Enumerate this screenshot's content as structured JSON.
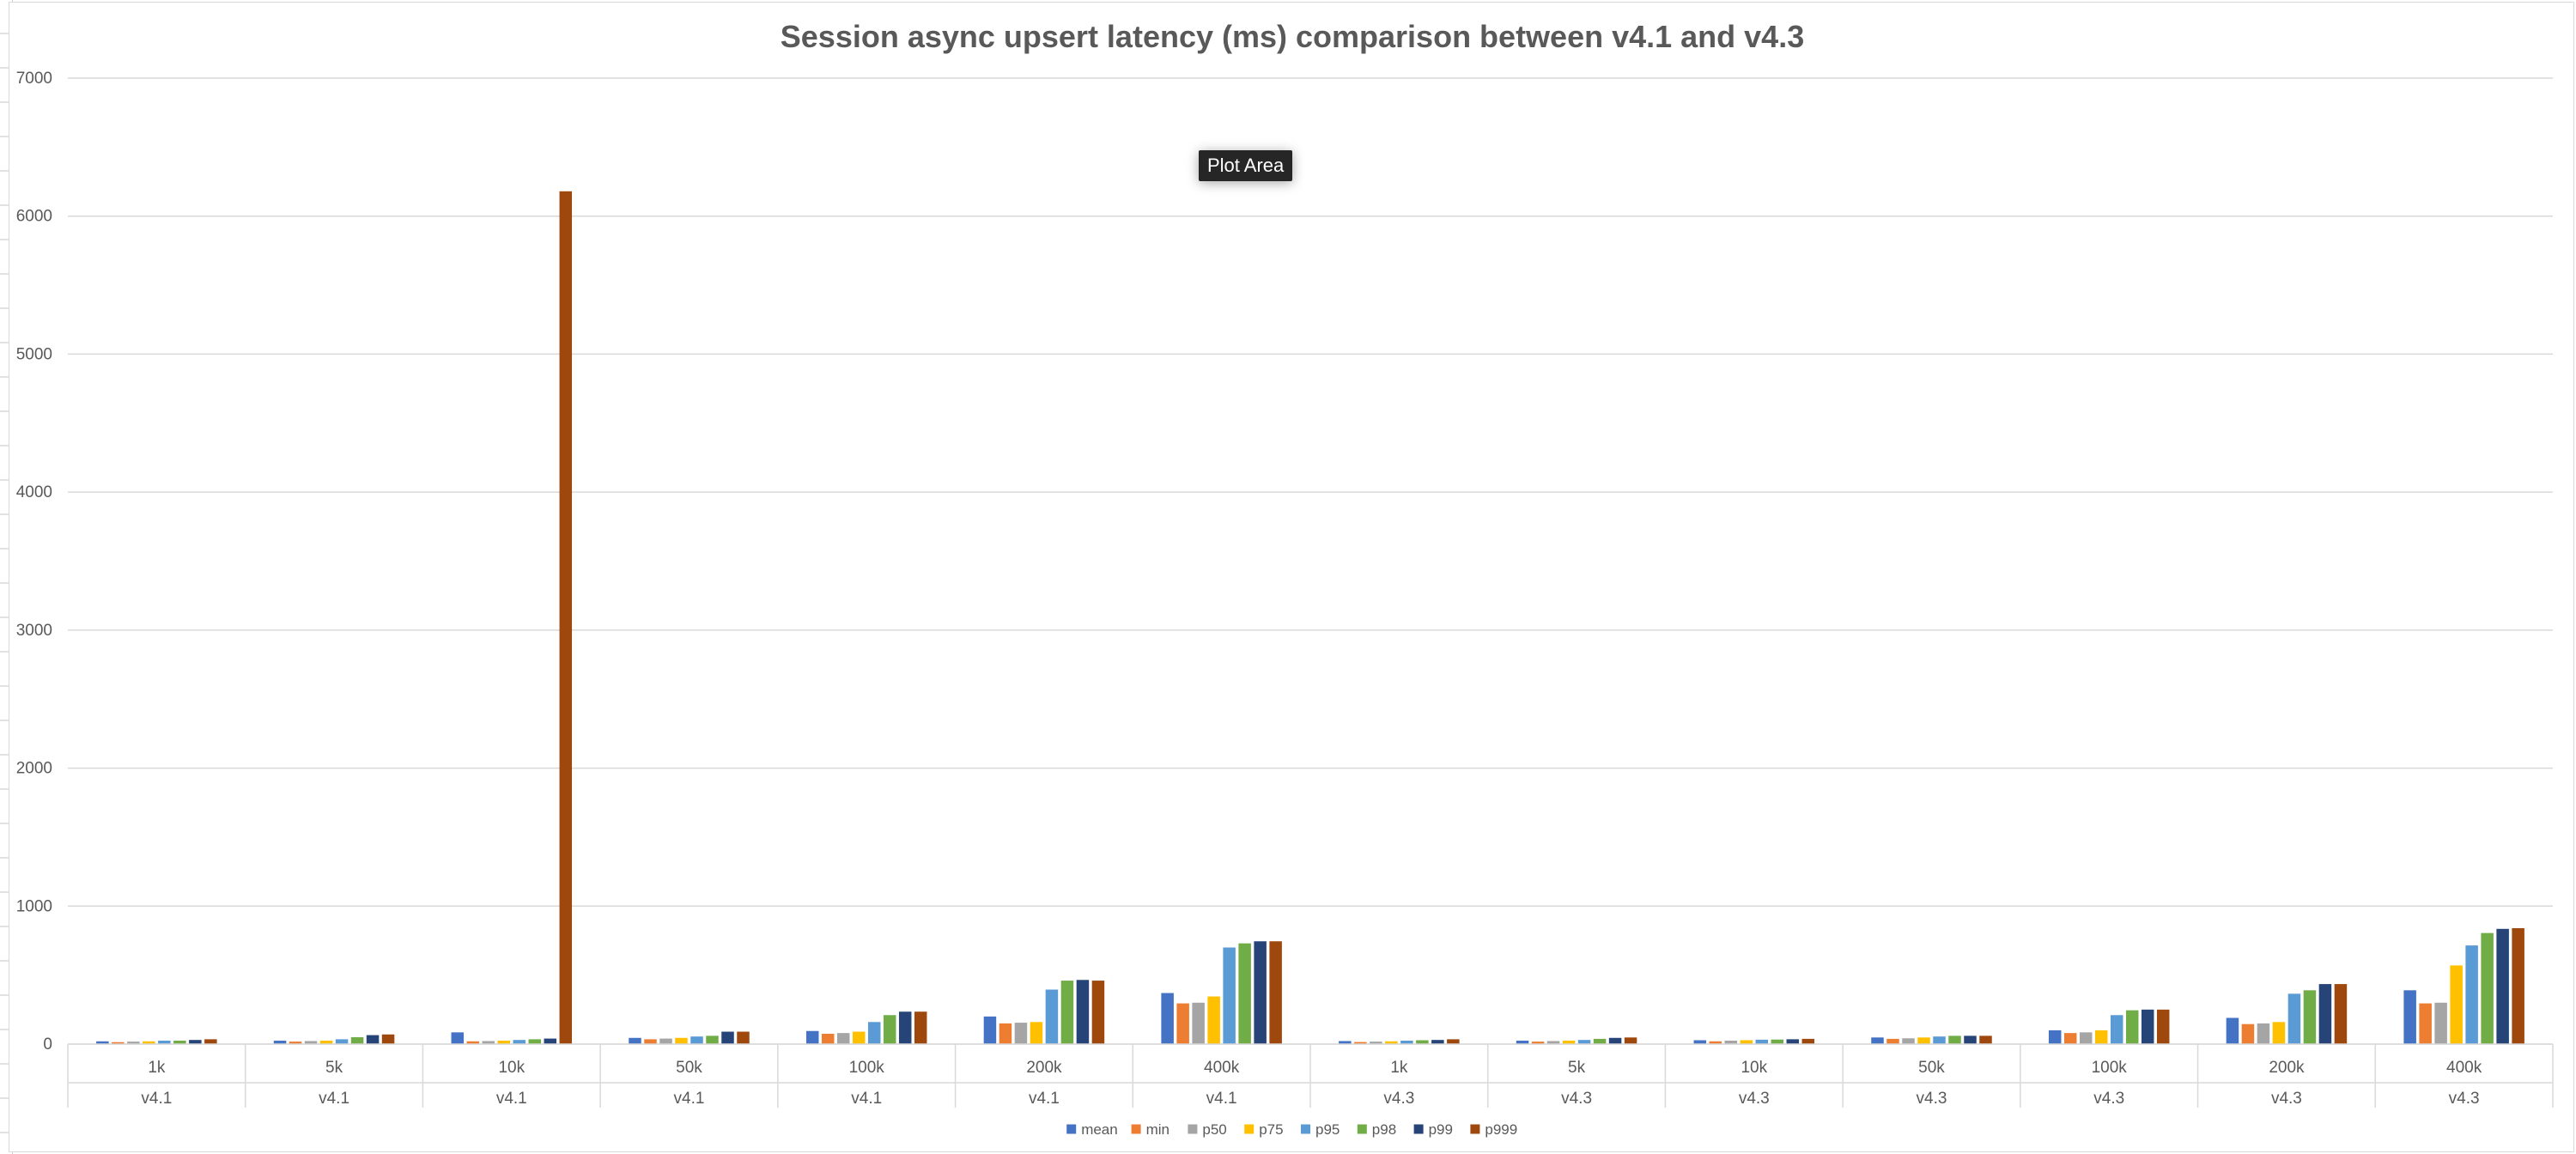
{
  "chart_data": {
    "type": "bar",
    "title": "Session async upsert latency (ms) comparison between v4.1 and v4.3",
    "xlabel": "",
    "ylabel": "",
    "ylim": [
      0,
      7000
    ],
    "yticks": [
      0,
      1000,
      2000,
      3000,
      4000,
      5000,
      6000,
      7000
    ],
    "grid": true,
    "legend_position": "bottom",
    "categories": [
      "1k",
      "5k",
      "10k",
      "50k",
      "100k",
      "200k",
      "400k",
      "1k",
      "5k",
      "10k",
      "50k",
      "100k",
      "200k",
      "400k"
    ],
    "groups": [
      "v4.1",
      "v4.1",
      "v4.1",
      "v4.1",
      "v4.1",
      "v4.1",
      "v4.1",
      "v4.3",
      "v4.3",
      "v4.3",
      "v4.3",
      "v4.3",
      "v4.3",
      "v4.3"
    ],
    "series": [
      {
        "name": "mean",
        "color": "#4472C4",
        "values": [
          20,
          25,
          85,
          45,
          95,
          200,
          370,
          22,
          25,
          28,
          48,
          100,
          190,
          390
        ]
      },
      {
        "name": "min",
        "color": "#ED7D31",
        "values": [
          14,
          18,
          20,
          35,
          75,
          150,
          295,
          15,
          18,
          20,
          38,
          80,
          145,
          295
        ]
      },
      {
        "name": "p50",
        "color": "#A5A5A5",
        "values": [
          18,
          22,
          22,
          40,
          80,
          155,
          300,
          18,
          22,
          25,
          42,
          85,
          150,
          300
        ]
      },
      {
        "name": "p75",
        "color": "#FFC000",
        "values": [
          20,
          25,
          25,
          45,
          90,
          160,
          345,
          20,
          25,
          28,
          48,
          100,
          160,
          570
        ]
      },
      {
        "name": "p95",
        "color": "#5B9BD5",
        "values": [
          25,
          35,
          30,
          55,
          160,
          395,
          700,
          25,
          30,
          32,
          55,
          210,
          365,
          715
        ]
      },
      {
        "name": "p98",
        "color": "#70AD47",
        "values": [
          25,
          50,
          35,
          60,
          210,
          460,
          730,
          28,
          38,
          33,
          60,
          245,
          390,
          805
        ]
      },
      {
        "name": "p99",
        "color": "#264478",
        "values": [
          30,
          65,
          40,
          90,
          235,
          465,
          745,
          30,
          45,
          35,
          60,
          250,
          435,
          835
        ]
      },
      {
        "name": "p999",
        "color": "#9E480E",
        "values": [
          35,
          70,
          6180,
          90,
          235,
          460,
          745,
          35,
          48,
          38,
          60,
          250,
          435,
          840
        ]
      }
    ]
  },
  "tooltip": {
    "label": "Plot Area"
  }
}
